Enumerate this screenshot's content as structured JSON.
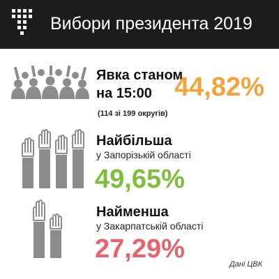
{
  "header": {
    "title": "Вибори президента 2019",
    "bg_color": "#1c1c1c"
  },
  "turnout": {
    "label_line1": "Явка станом",
    "label_line2": "на 15:00",
    "value": "44,82%",
    "note": "(114 зі 199 округів)",
    "color": "#f2a33a",
    "icon": "crowd-icon"
  },
  "highest": {
    "label": "Найбільша",
    "region": "у Запорізькій області",
    "value": "49,65%",
    "color": "#7fbe3a",
    "icon": "raised-hands-many-icon"
  },
  "lowest": {
    "label": "Найменша",
    "region": "у Закарпатській області",
    "value": "27,29%",
    "color": "#e8636b",
    "icon": "raised-hands-few-icon"
  },
  "source": "Дані ЦВК"
}
